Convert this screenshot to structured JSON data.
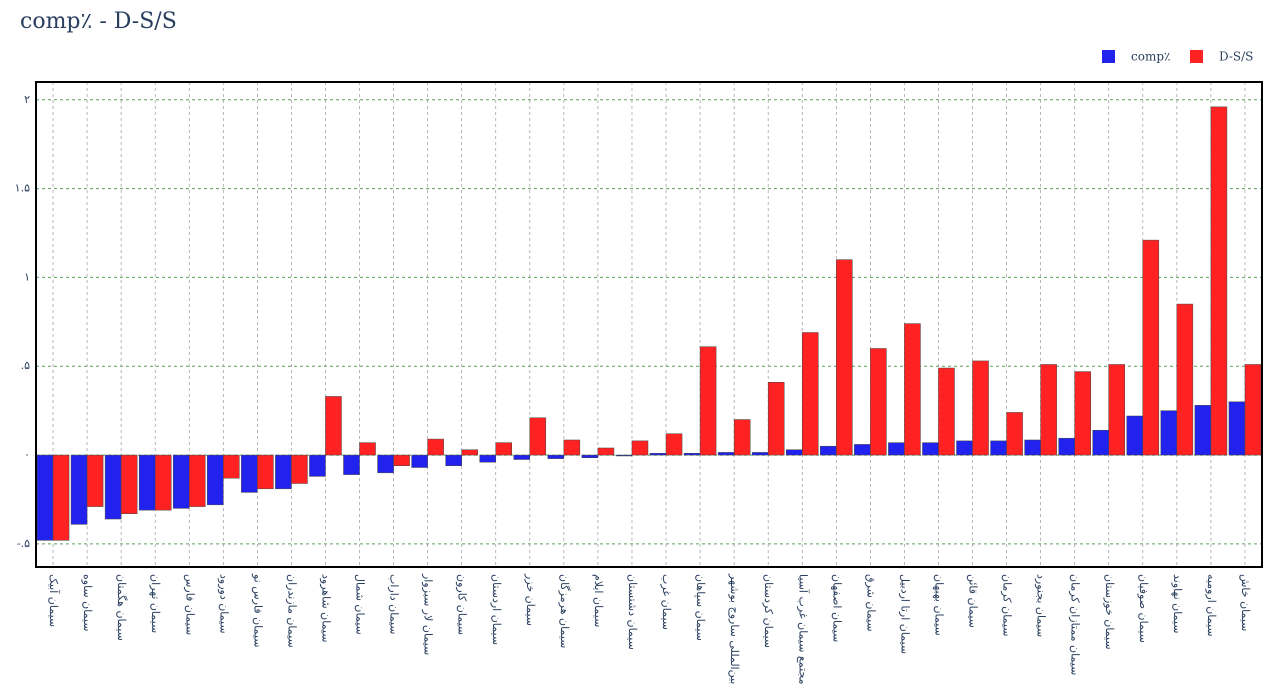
{
  "chart_data": {
    "type": "bar",
    "title": "comp٪ - D-S/S",
    "categories": [
      "سیمان آبیک",
      "سیمان ساوه",
      "سیمان هگمتان",
      "سیمان تهران",
      "سیمان فارس",
      "سیمان دورود",
      "سیمان فارس نو",
      "سیمان مازندران",
      "سیمان شاهرود",
      "سیمان شمال",
      "سیمان داراب",
      "سیمان لار سبزوار",
      "سیمان کارون",
      "سیمان اردستان",
      "سیمان خزر",
      "سیمان هرمزگان",
      "سیمان ایلام",
      "سیمان دشتستان",
      "سیمان غرب",
      "سیمان سپاهان",
      "بین‌المللی ساروج بوشهر",
      "سیمان کردستان",
      "مجتمع سیمان غرب آسیا",
      "سیمان اصفهان",
      "سیمان شرق",
      "سیمان ارتا اردبیل",
      "سیمان بهبهان",
      "سیمان قائن",
      "سیمان کرمان",
      "سیمان بجنورد",
      "سیمان ممتازان کرمان",
      "سیمان خوزستان",
      "سیمان صوفیان",
      "سیمان نهاوند",
      "سیمان ارومیه",
      "سیمان خاش"
    ],
    "series": [
      {
        "name": "comp٪",
        "color": "#2222ee",
        "values": [
          -0.48,
          -0.39,
          -0.36,
          -0.31,
          -0.3,
          -0.28,
          -0.21,
          -0.19,
          -0.12,
          -0.11,
          -0.1,
          -0.07,
          -0.06,
          -0.04,
          -0.025,
          -0.02,
          -0.015,
          -0.005,
          0.01,
          0.01,
          0.015,
          0.015,
          0.03,
          0.05,
          0.06,
          0.07,
          0.07,
          0.08,
          0.08,
          0.085,
          0.095,
          0.14,
          0.22,
          0.25,
          0.28,
          0.3
        ]
      },
      {
        "name": "D-S/S",
        "color": "#ff2222",
        "values": [
          -0.48,
          -0.29,
          -0.33,
          -0.31,
          -0.29,
          -0.13,
          -0.19,
          -0.16,
          0.33,
          0.07,
          -0.06,
          0.09,
          0.03,
          0.07,
          0.21,
          0.085,
          0.04,
          0.08,
          0.12,
          0.61,
          0.2,
          0.41,
          0.69,
          1.1,
          0.6,
          0.74,
          0.49,
          0.53,
          0.24,
          0.51,
          0.47,
          0.51,
          1.21,
          0.85,
          1.96,
          0.51
        ]
      }
    ],
    "ylim": [
      -0.63,
      2.1
    ],
    "yticks": [
      {
        "value": -0.5,
        "label": "-.۵"
      },
      {
        "value": 0,
        "label": "۰"
      },
      {
        "value": 0.5,
        "label": ".۵"
      },
      {
        "value": 1,
        "label": "۱"
      },
      {
        "value": 1.5,
        "label": "۱.۵"
      },
      {
        "value": 2,
        "label": "۲"
      }
    ],
    "grid": true
  }
}
